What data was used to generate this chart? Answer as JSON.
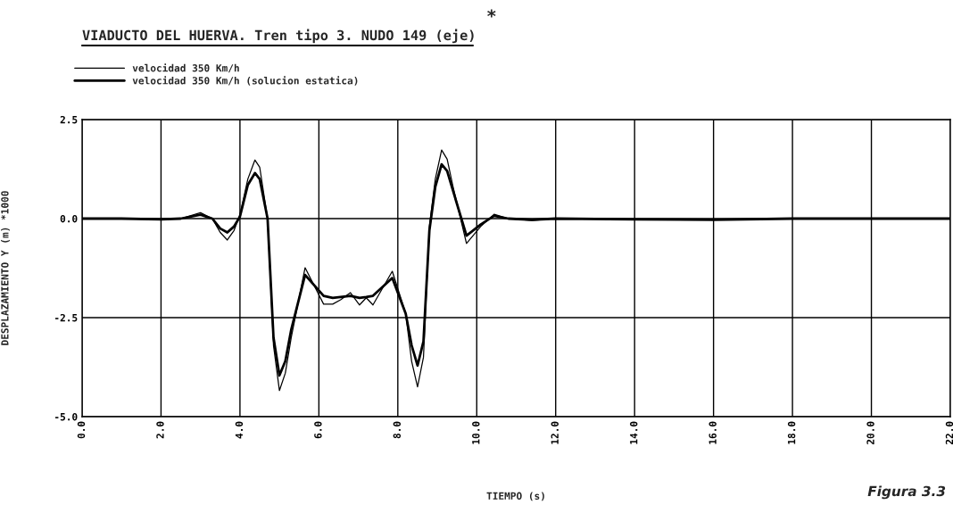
{
  "chart_data": {
    "type": "line",
    "title": "VIADUCTO DEL HUERVA. Tren tipo 3. NUDO 149 (eje)",
    "xlabel": "TIEMPO (s)",
    "ylabel": "DESPLAZAMIENTO Y (m) *1000",
    "annotations": [
      "*",
      "Figura 3.3"
    ],
    "x": [
      0,
      1,
      2,
      2.5,
      3.0,
      3.3,
      3.5,
      3.68,
      3.85,
      4.0,
      4.2,
      4.38,
      4.5,
      4.7,
      4.85,
      5.0,
      5.15,
      5.3,
      5.65,
      6.12,
      6.35,
      6.55,
      6.8,
      7.03,
      7.2,
      7.37,
      7.86,
      8.2,
      8.35,
      8.5,
      8.65,
      8.8,
      8.95,
      9.11,
      9.25,
      9.4,
      9.74,
      10.1,
      10.44,
      10.8,
      11.4,
      12,
      14,
      16,
      18,
      20,
      22
    ],
    "series": [
      {
        "name": "velocidad 350 Km/h",
        "color": "#000000",
        "values": [
          0,
          0,
          -0.02,
          0,
          0.15,
          0,
          -0.35,
          -0.54,
          -0.3,
          0.1,
          1.0,
          1.48,
          1.3,
          0,
          -3.2,
          -4.34,
          -3.9,
          -3.0,
          -1.24,
          -2.16,
          -2.16,
          -2.05,
          -1.87,
          -2.18,
          -2.0,
          -2.18,
          -1.33,
          -2.4,
          -3.6,
          -4.25,
          -3.5,
          -0.2,
          1.0,
          1.73,
          1.5,
          0.8,
          -0.63,
          -0.2,
          0.11,
          0.0,
          -0.05,
          0,
          -0.02,
          -0.03,
          0,
          0,
          0
        ]
      },
      {
        "name": "velocidad 350 Km/h (solucion estatica)",
        "color": "#000000",
        "values": [
          0,
          0,
          -0.02,
          0,
          0.1,
          0,
          -0.25,
          -0.35,
          -0.2,
          0.05,
          0.85,
          1.15,
          1.0,
          0,
          -3.0,
          -3.96,
          -3.6,
          -2.8,
          -1.42,
          -1.95,
          -2.0,
          -1.98,
          -1.95,
          -2.0,
          -1.98,
          -1.95,
          -1.5,
          -2.4,
          -3.2,
          -3.71,
          -3.1,
          -0.3,
          0.8,
          1.37,
          1.2,
          0.7,
          -0.43,
          -0.15,
          0.07,
          0.0,
          -0.03,
          0,
          -0.02,
          -0.03,
          0,
          0,
          0
        ]
      }
    ],
    "xlim": [
      0,
      22
    ],
    "xticks": [
      {
        "value": 0,
        "label": "0.0"
      },
      {
        "value": 2,
        "label": "2.0"
      },
      {
        "value": 4,
        "label": "4.0"
      },
      {
        "value": 6,
        "label": "6.0"
      },
      {
        "value": 8,
        "label": "8.0"
      },
      {
        "value": 10,
        "label": "10.0"
      },
      {
        "value": 12,
        "label": "12.0"
      },
      {
        "value": 14,
        "label": "14.0"
      },
      {
        "value": 16,
        "label": "16.0"
      },
      {
        "value": 18,
        "label": "18.0"
      },
      {
        "value": 20,
        "label": "20.0"
      },
      {
        "value": 22,
        "label": "22.0"
      }
    ],
    "ylim": [
      -5,
      2.5
    ],
    "yticks": [
      {
        "value": -5,
        "label": "-5.0"
      },
      {
        "value": -2.5,
        "label": "-2.5"
      },
      {
        "value": 0,
        "label": "0.0"
      },
      {
        "value": 2.5,
        "label": "2.5"
      }
    ],
    "grid": true,
    "legend": "top left",
    "line_style": "solid",
    "marker": "none"
  }
}
